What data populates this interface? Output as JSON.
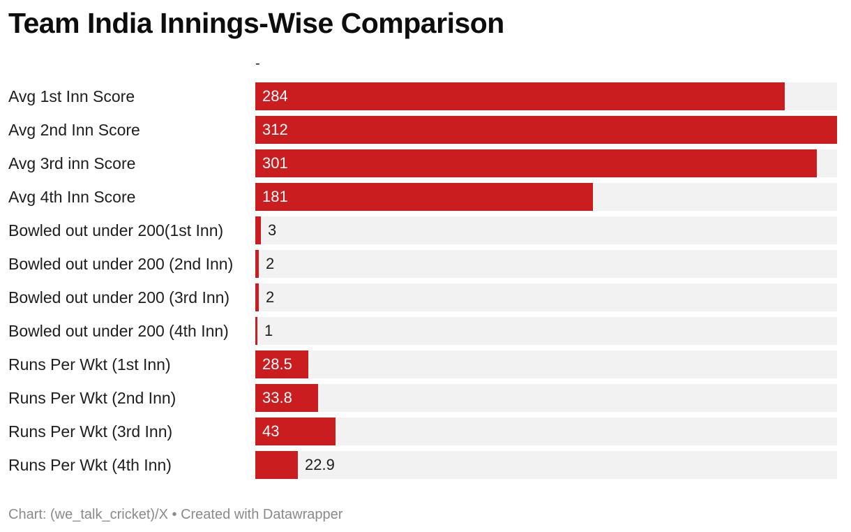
{
  "chart_data": {
    "type": "bar",
    "orientation": "horizontal",
    "title": "Team India Innings-Wise Comparison",
    "column_header": "-",
    "categories": [
      "Avg 1st Inn Score",
      "Avg 2nd Inn Score",
      "Avg 3rd inn Score",
      "Avg 4th Inn Score",
      "Bowled out under 200(1st Inn)",
      "Bowled out under 200 (2nd Inn)",
      "Bowled out under 200 (3rd Inn)",
      "Bowled out under 200 (4th Inn)",
      "Runs Per Wkt (1st Inn)",
      "Runs Per Wkt (2nd Inn)",
      "Runs Per Wkt (3rd Inn)",
      "Runs Per Wkt (4th Inn)"
    ],
    "values": [
      284,
      312,
      301,
      181,
      3,
      2,
      2,
      1,
      28.5,
      33.8,
      43,
      22.9
    ],
    "value_labels": [
      "284",
      "312",
      "301",
      "181",
      "3",
      "2",
      "2",
      "1",
      "28.5",
      "33.8",
      "43",
      "22.9"
    ],
    "xlim": [
      0,
      312
    ],
    "bar_color": "#c91d1f",
    "track_color": "#f2f2f2",
    "grid": false,
    "legend": "none"
  },
  "footer": {
    "text": "Chart: (we_talk_cricket)/X • Created with Datawrapper"
  }
}
